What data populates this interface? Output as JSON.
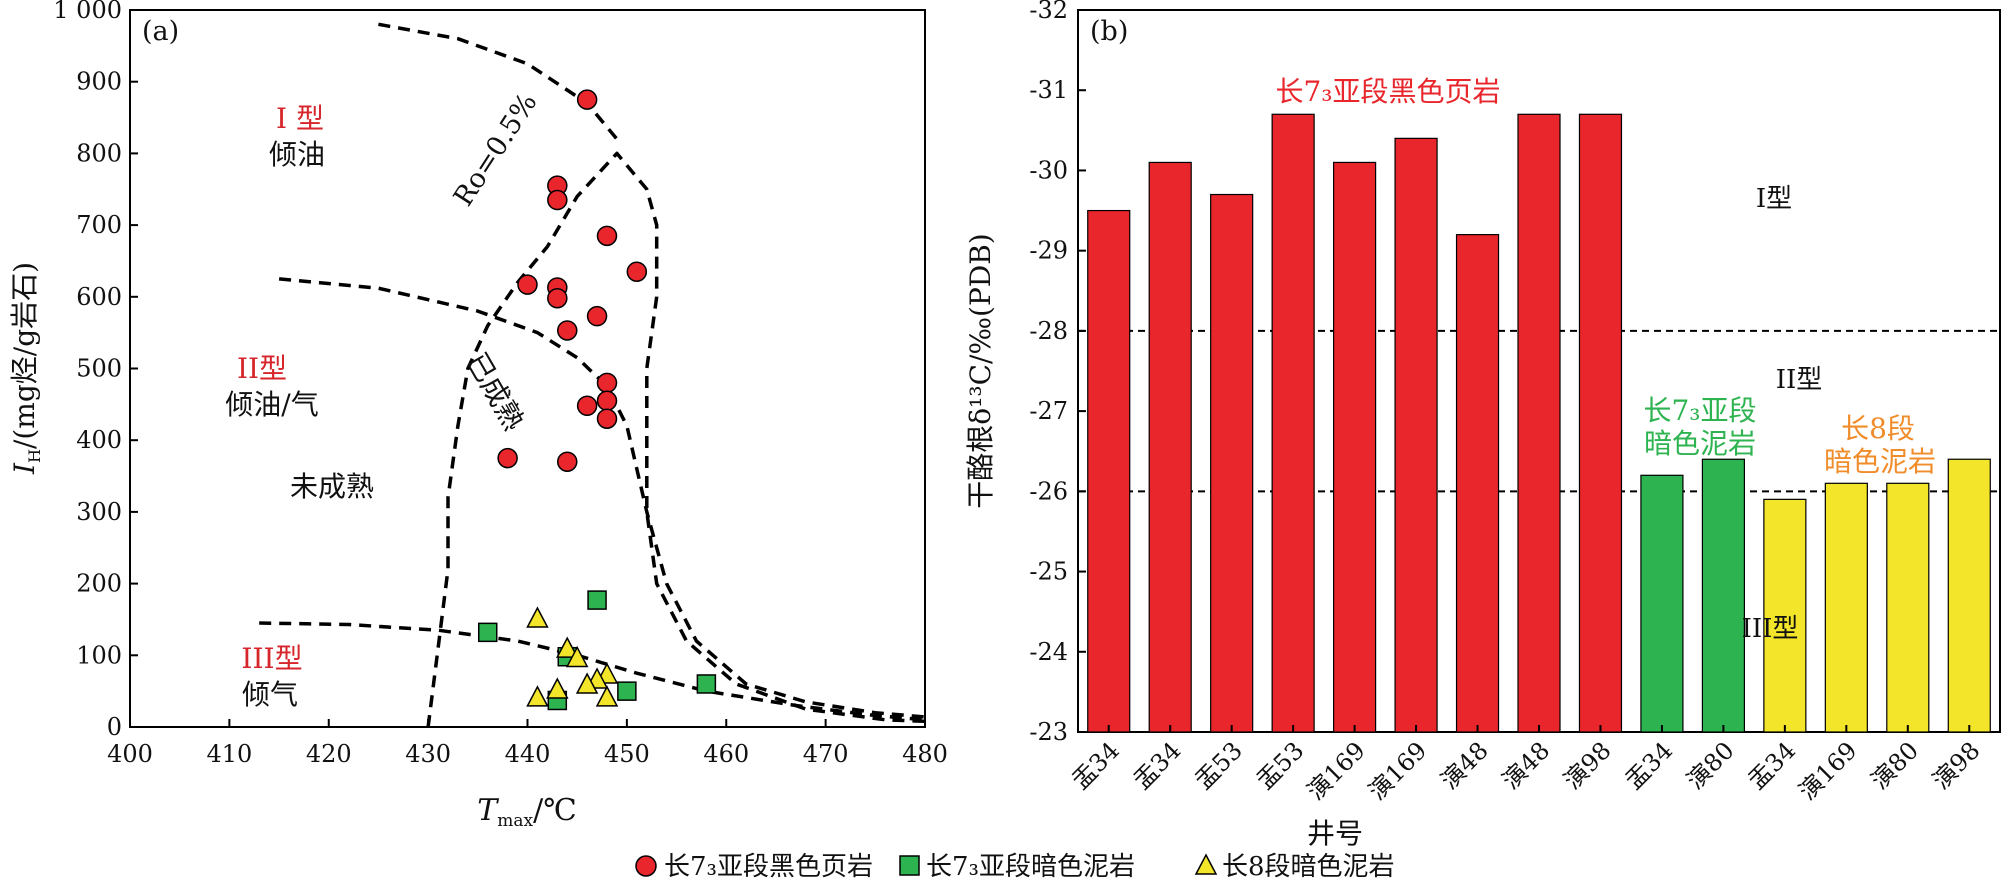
{
  "legend": {
    "items": [
      {
        "label": "长7₃亚段黑色页岩",
        "marker": "circle",
        "color": "#e8262b"
      },
      {
        "label": "长7₃亚段暗色泥岩",
        "marker": "square",
        "color": "#2db34f"
      },
      {
        "label": "长8段暗色泥岩",
        "marker": "triangle",
        "color": "#f2e52a"
      }
    ]
  },
  "chart_data": [
    {
      "type": "scatter",
      "panel_label": "(a)",
      "xlabel_var": "T",
      "xlabel_sub": "max",
      "xlabel_unit": "/℃",
      "ylabel_var": "I",
      "ylabel_sub": "H",
      "ylabel_unit": "/(mg烃/g岩石)",
      "xlim": [
        400,
        480
      ],
      "ylim": [
        0,
        1000
      ],
      "xticks": [
        "400",
        "410",
        "420",
        "430",
        "440",
        "450",
        "460",
        "470",
        "480"
      ],
      "yticks": [
        "0",
        "100",
        "200",
        "300",
        "400",
        "500",
        "600",
        "700",
        "800",
        "900",
        "1 000"
      ],
      "series": [
        {
          "name": "长7₃亚段黑色页岩",
          "marker": "circle",
          "color": "#e8262b",
          "points": [
            [
              446,
              875
            ],
            [
              443,
              755
            ],
            [
              443,
              735
            ],
            [
              448,
              685
            ],
            [
              451,
              635
            ],
            [
              440,
              617
            ],
            [
              443,
              613
            ],
            [
              443,
              598
            ],
            [
              447,
              573
            ],
            [
              444,
              553
            ],
            [
              448,
              480
            ],
            [
              448,
              455
            ],
            [
              446,
              448
            ],
            [
              448,
              430
            ],
            [
              438,
              375
            ],
            [
              444,
              370
            ]
          ]
        },
        {
          "name": "长7₃亚段暗色泥岩",
          "marker": "square",
          "color": "#2db34f",
          "points": [
            [
              447,
              177
            ],
            [
              436,
              132
            ],
            [
              444,
              98
            ],
            [
              443,
              37
            ],
            [
              450,
              50
            ],
            [
              458,
              60
            ]
          ]
        },
        {
          "name": "长8段暗色泥岩",
          "marker": "triangle",
          "color": "#f2e52a",
          "points": [
            [
              441,
              152
            ],
            [
              444,
              110
            ],
            [
              445,
              97
            ],
            [
              448,
              74
            ],
            [
              447,
              67
            ],
            [
              446,
              60
            ],
            [
              443,
              53
            ],
            [
              441,
              42
            ],
            [
              448,
              42
            ]
          ]
        }
      ],
      "curves": {
        "ro": [
          [
            425,
            980
          ],
          [
            433,
            960
          ],
          [
            440,
            925
          ],
          [
            446,
            870
          ],
          [
            449,
            820
          ]
        ],
        "type_I_II": [
          [
            415,
            625
          ],
          [
            425,
            612
          ],
          [
            435,
            580
          ],
          [
            441,
            550
          ],
          [
            445,
            515
          ],
          [
            448,
            475
          ],
          [
            450,
            420
          ],
          [
            451,
            360
          ],
          [
            452,
            300
          ],
          [
            454,
            200
          ],
          [
            457,
            120
          ],
          [
            462,
            60
          ],
          [
            468,
            35
          ],
          [
            475,
            20
          ],
          [
            480,
            14
          ]
        ],
        "type_II_III": [
          [
            413,
            145
          ],
          [
            422,
            143
          ],
          [
            431,
            135
          ],
          [
            439,
            120
          ],
          [
            445,
            100
          ],
          [
            451,
            75
          ],
          [
            458,
            50
          ],
          [
            467,
            30
          ],
          [
            475,
            16
          ],
          [
            480,
            10
          ]
        ],
        "ro_boundary": [
          [
            430,
            0
          ],
          [
            431,
            110
          ],
          [
            432,
            220
          ],
          [
            432,
            320
          ],
          [
            433,
            420
          ],
          [
            434,
            500
          ],
          [
            436,
            560
          ],
          [
            439,
            620
          ],
          [
            442,
            670
          ],
          [
            445,
            740
          ],
          [
            449,
            800
          ],
          [
            452,
            750
          ],
          [
            453,
            700
          ],
          [
            453,
            600
          ],
          [
            452,
            500
          ],
          [
            452,
            400
          ],
          [
            452,
            300
          ],
          [
            453,
            200
          ],
          [
            456,
            120
          ],
          [
            461,
            60
          ],
          [
            468,
            25
          ],
          [
            476,
            10
          ],
          [
            480,
            8
          ]
        ]
      },
      "annotations": {
        "ro": "Ro=0.5%",
        "mature": "已成熟",
        "immature": "未成熟",
        "type1": "I 型",
        "type1_desc": "倾油",
        "type2": "II型",
        "type2_desc": "倾油/气",
        "type3": "III型",
        "type3_desc": "倾气"
      }
    },
    {
      "type": "bar",
      "panel_label": "(b)",
      "xlabel": "井号",
      "ylabel": "干酪根δ¹³C/‰(PDB)",
      "ylim": [
        -32,
        -23
      ],
      "yticks": [
        "-32",
        "-31",
        "-30",
        "-29",
        "-28",
        "-27",
        "-26",
        "-25",
        "-24",
        "-23"
      ],
      "categories": [
        "盂34",
        "盂34",
        "盂53",
        "盂53",
        "演169",
        "演169",
        "演48",
        "演48",
        "演98",
        "盂34",
        "演80",
        "盂34",
        "演169",
        "演80",
        "演98"
      ],
      "values": [
        -29.5,
        -30.1,
        -29.7,
        -30.7,
        -30.1,
        -30.4,
        -29.2,
        -30.7,
        -30.7,
        -26.2,
        -26.4,
        -25.9,
        -26.1,
        -26.1,
        -26.4
      ],
      "colors": [
        "#e8262b",
        "#e8262b",
        "#e8262b",
        "#e8262b",
        "#e8262b",
        "#e8262b",
        "#e8262b",
        "#e8262b",
        "#e8262b",
        "#2db34f",
        "#2db34f",
        "#f2e52a",
        "#f2e52a",
        "#f2e52a",
        "#f2e52a"
      ],
      "reference_lines": [
        -28,
        -26
      ],
      "annotations": {
        "red_group": "长7₃亚段黑色页岩",
        "green_group_line1": "长7₃亚段",
        "green_group_line2": "暗色泥岩",
        "yellow_group_line1": "长8段",
        "yellow_group_line2": "暗色泥岩",
        "type1": "I型",
        "type2": "II型",
        "type3": "III型"
      }
    }
  ]
}
